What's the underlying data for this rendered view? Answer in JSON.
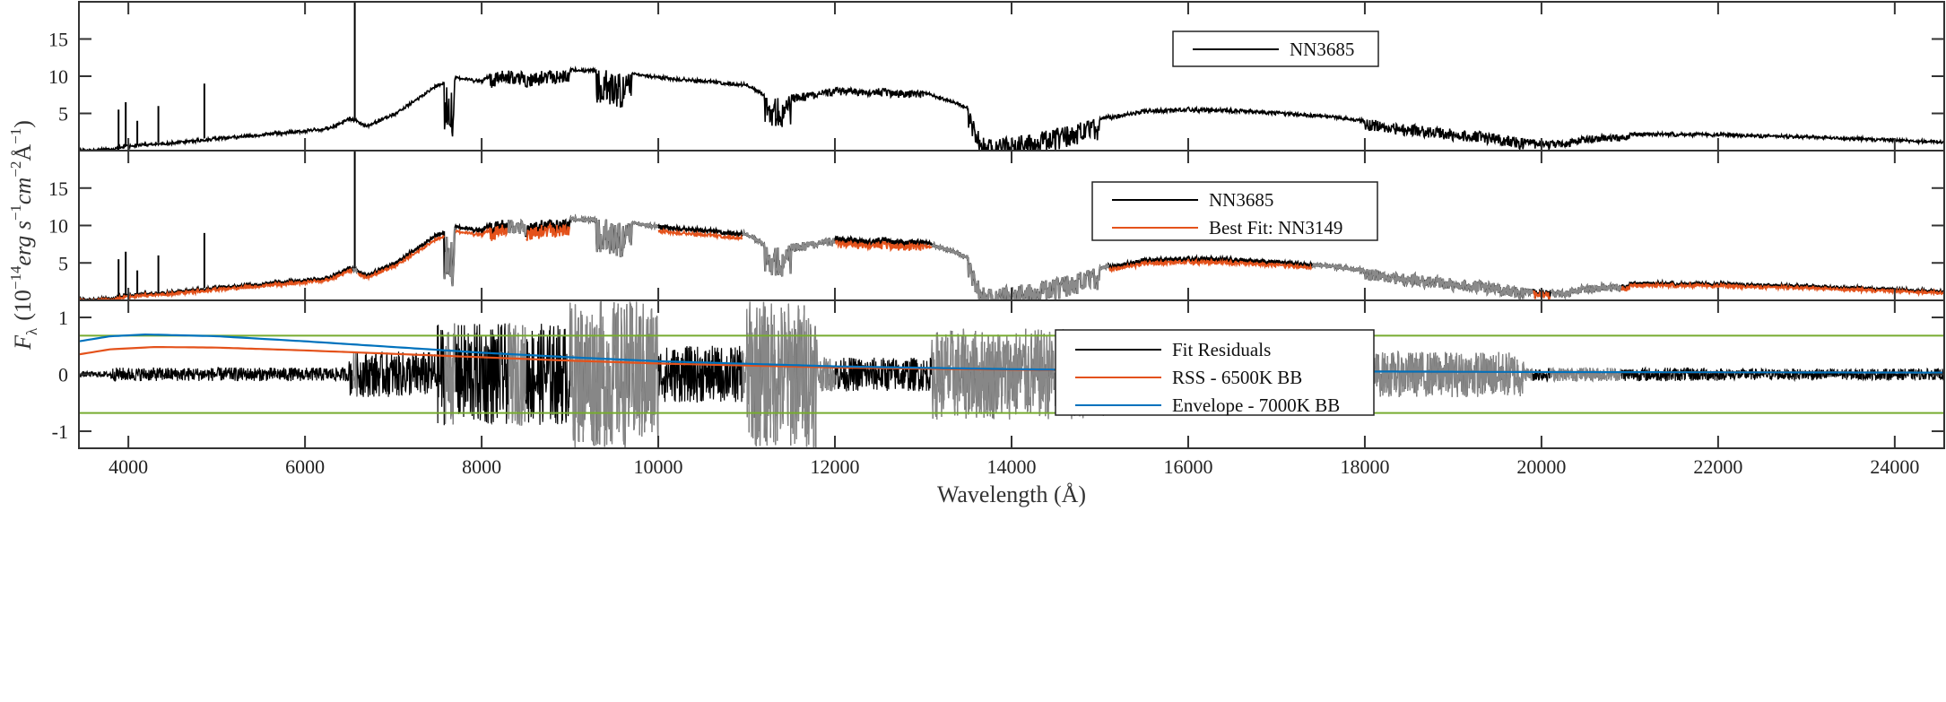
{
  "chart_data": {
    "type": "line",
    "xlabel": "Wavelength (Å)",
    "ylabel": "F_λ (10^-14 erg s^-1 cm^-2 Å^-1)",
    "ylabel_parts": {
      "f": "F",
      "sub": "λ",
      "pre": "(10",
      "exp1": "−14",
      "erg": "erg s",
      "exp2": "−1",
      "cm": "cm",
      "exp3": "−2",
      "ang": "Å",
      "exp4": "−1",
      "close": ")"
    },
    "xlim": [
      3440,
      24560
    ],
    "xticks": [
      4000,
      6000,
      8000,
      10000,
      12000,
      14000,
      16000,
      18000,
      20000,
      22000,
      24000
    ],
    "grid": false,
    "panels": [
      {
        "name": "observed",
        "ylim": [
          0,
          20
        ],
        "yticks": [
          5,
          10,
          15
        ],
        "legend": {
          "placement": "top-right",
          "entries": [
            {
              "label": "NN3685",
              "color": "#000000"
            }
          ]
        }
      },
      {
        "name": "fit",
        "ylim": [
          0,
          20
        ],
        "yticks": [
          5,
          10,
          15
        ],
        "legend": {
          "placement": "top-right",
          "entries": [
            {
              "label": "NN3685",
              "color": "#000000"
            },
            {
              "label": "Best Fit: NN3149",
              "color": "#e4521b"
            }
          ]
        }
      },
      {
        "name": "residuals",
        "ylim": [
          -1.3,
          1.3
        ],
        "yticks": [
          -1,
          0,
          1
        ],
        "thresholds": [
          0.68,
          -0.68
        ],
        "threshold_color": "#77ac30",
        "legend": {
          "placement": "center-right",
          "entries": [
            {
              "label": "Fit Residuals",
              "color": "#000000"
            },
            {
              "label": "RSS - 6500K BB",
              "color": "#e4521b"
            },
            {
              "label": "Envelope - 7000K BB",
              "color": "#0072bd"
            }
          ]
        }
      }
    ],
    "spectrum_NN3685": {
      "wavelength": [
        3440,
        3800,
        4000,
        4500,
        5000,
        5500,
        6000,
        6300,
        6500,
        6700,
        7000,
        7200,
        7500,
        7700,
        8000,
        8200,
        8500,
        9000,
        9500,
        10000,
        10500,
        11000,
        11300,
        11500,
        12000,
        12500,
        13000,
        13500,
        13700,
        14000,
        14500,
        15000,
        15500,
        16000,
        16500,
        17000,
        17500,
        18000,
        18500,
        19000,
        19500,
        20000,
        20300,
        20500,
        21000,
        22000,
        23000,
        24000,
        24560
      ],
      "flux": [
        0.2,
        0.3,
        0.8,
        1.2,
        1.8,
        2.3,
        2.8,
        3.2,
        4.5,
        3.5,
        5,
        6.5,
        9,
        10,
        9.5,
        11,
        10.5,
        11,
        10.8,
        10,
        9.5,
        9,
        7,
        7.5,
        8.5,
        8.3,
        8,
        6,
        1.5,
        2,
        3,
        4.5,
        5.5,
        5.8,
        5.6,
        5.3,
        4.8,
        4.2,
        3.5,
        2.8,
        2.4,
        1.2,
        1.5,
        2,
        2.4,
        2.3,
        2,
        1.6,
        1.3
      ]
    },
    "emission_lines": [
      {
        "wavelength": 3889,
        "flux": 5.5
      },
      {
        "wavelength": 3970,
        "flux": 6.5
      },
      {
        "wavelength": 4101,
        "flux": 4
      },
      {
        "wavelength": 4340,
        "flux": 6
      },
      {
        "wavelength": 4861,
        "flux": 9
      },
      {
        "wavelength": 6563,
        "flux": 20
      }
    ],
    "masked_regions": [
      [
        6540,
        6590
      ],
      [
        7580,
        7700
      ],
      [
        8300,
        8500
      ],
      [
        9000,
        10000
      ],
      [
        10950,
        12000
      ],
      [
        13100,
        15100
      ],
      [
        17400,
        19900
      ],
      [
        20100,
        20900
      ]
    ],
    "absorption_depth": [
      {
        "range": [
          7580,
          7700
        ],
        "depth": 8
      },
      {
        "range": [
          8100,
          9000
        ],
        "depth": 2
      },
      {
        "range": [
          9300,
          9700
        ],
        "depth": 5
      },
      {
        "range": [
          11200,
          11500
        ],
        "depth": 4
      },
      {
        "range": [
          11500,
          13000
        ],
        "depth": 1
      },
      {
        "range": [
          13500,
          15000
        ],
        "depth": 3
      },
      {
        "range": [
          15000,
          17000
        ],
        "depth": 0.5
      },
      {
        "range": [
          18000,
          19800
        ],
        "depth": 1.5
      },
      {
        "range": [
          19800,
          21000
        ],
        "depth": 1
      }
    ],
    "residual_scatter": [
      {
        "range": [
          3440,
          3800
        ],
        "amp": 0.05
      },
      {
        "range": [
          3800,
          6500
        ],
        "amp": 0.12
      },
      {
        "range": [
          6500,
          7500
        ],
        "amp": 0.4
      },
      {
        "range": [
          7500,
          9000
        ],
        "amp": 0.9
      },
      {
        "range": [
          9000,
          10000
        ],
        "amp": 1.3
      },
      {
        "range": [
          10000,
          11000
        ],
        "amp": 0.5
      },
      {
        "range": [
          11000,
          11800
        ],
        "amp": 1.3
      },
      {
        "range": [
          11800,
          13100
        ],
        "amp": 0.3
      },
      {
        "range": [
          13100,
          15100
        ],
        "amp": 0.8
      },
      {
        "range": [
          15100,
          17400
        ],
        "amp": 0.12
      },
      {
        "range": [
          17400,
          19800
        ],
        "amp": 0.4
      },
      {
        "range": [
          19800,
          22000
        ],
        "amp": 0.12
      },
      {
        "range": [
          22000,
          24560
        ],
        "amp": 0.1
      }
    ],
    "rss_6500K_BB": {
      "wavelength": [
        3440,
        3800,
        4300,
        5000,
        6000,
        7000,
        8000,
        9000,
        10000,
        12000,
        14000,
        16000,
        20000,
        24560
      ],
      "value": [
        0.35,
        0.44,
        0.48,
        0.47,
        0.42,
        0.36,
        0.3,
        0.24,
        0.19,
        0.12,
        0.08,
        0.06,
        0.04,
        0.03
      ]
    },
    "envelope_7000K_BB": {
      "wavelength": [
        3440,
        3800,
        4200,
        5000,
        6000,
        7000,
        8000,
        9000,
        10000,
        12000,
        14000,
        16000,
        20000,
        24560
      ],
      "value": [
        0.58,
        0.67,
        0.7,
        0.67,
        0.58,
        0.48,
        0.38,
        0.3,
        0.23,
        0.14,
        0.09,
        0.06,
        0.04,
        0.03
      ]
    }
  }
}
